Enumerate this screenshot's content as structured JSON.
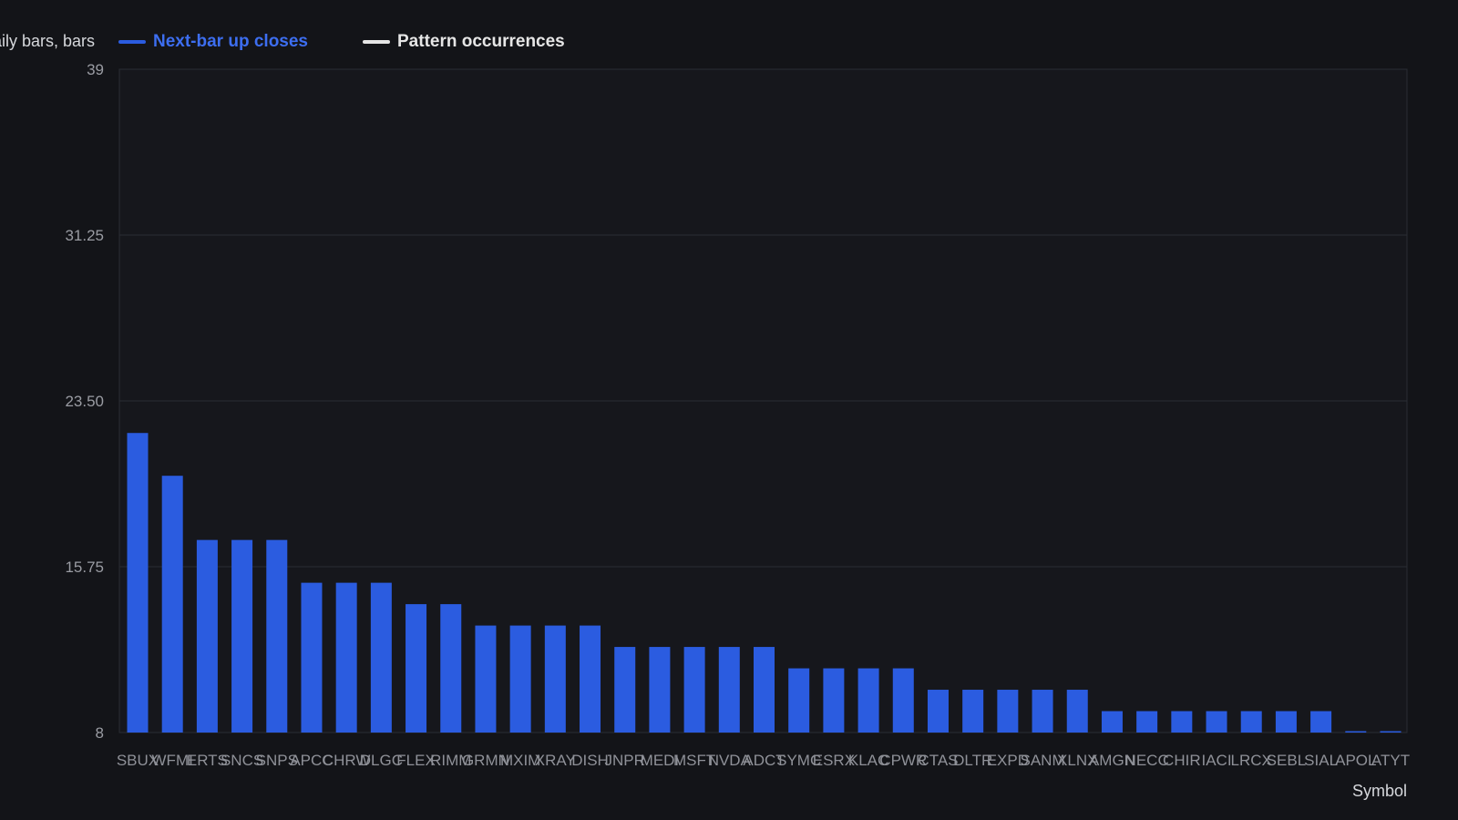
{
  "legend": {
    "title_fragment": "aily bars, bars",
    "items": [
      {
        "label": "Next-bar up closes",
        "color": "#2b5ce0",
        "text_color": "#3d6ef0"
      },
      {
        "label": "Pattern occurrences",
        "color": "#e6e6e6",
        "text_color": "#e6e6e6"
      }
    ]
  },
  "chart_data": {
    "type": "bar",
    "title": "",
    "xlabel": "Symbol",
    "ylabel": "",
    "ylim": [
      8,
      39
    ],
    "yticks": [
      "39",
      "31.25",
      "23.50",
      "15.75",
      "8"
    ],
    "grid": true,
    "legend_position": "top-left",
    "bar_color": "#2b5ce0",
    "categories": [
      "SBUX",
      "WFMI",
      "ERTS",
      "SNCS",
      "SNPS",
      "APCC",
      "CHRW",
      "DLGC",
      "FLEX",
      "RIMM",
      "GRMN",
      "MXIM",
      "XRAY",
      "DISH",
      "JNPR",
      "MEDI",
      "MSFT",
      "NVDA",
      "ADCT",
      "SYMC",
      "ESRX",
      "KLAC",
      "CPWR",
      "CTAS",
      "DLTR",
      "EXPD",
      "SANM",
      "XLNX",
      "AMGN",
      "NECC",
      "CHIR",
      "IACI",
      "LRCX",
      "SEBL",
      "SIAL",
      "APOL",
      "ATYT"
    ],
    "series": [
      {
        "name": "Next-bar up closes",
        "values": [
          22,
          20,
          17,
          17,
          17,
          15,
          15,
          15,
          14,
          14,
          13,
          13,
          13,
          13,
          12,
          12,
          12,
          12,
          12,
          11,
          11,
          11,
          11,
          10,
          10,
          10,
          10,
          10,
          9,
          9,
          9,
          9,
          9,
          9,
          9,
          8,
          8
        ]
      }
    ]
  }
}
